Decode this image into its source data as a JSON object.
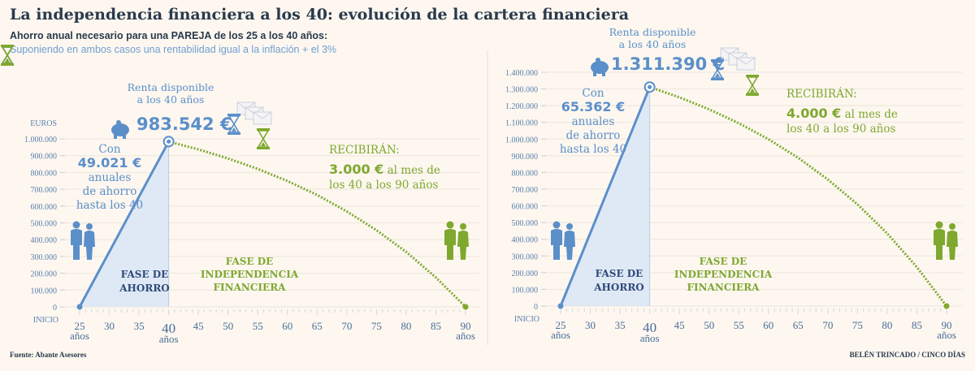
{
  "header": {
    "title": "La independencia financiera a los 40: evolución de la cartera financiera",
    "subtitle": "Ahorro anual necesario para una PAREJA de los 25 a los 40 años:",
    "note": "Suponiendo en ambos casos una rentabilidad igual a la inflación + el 3%"
  },
  "footer": {
    "source": "Fuente: Abante Asesores",
    "credit": "BELÉN TRINCADO / CINCO DÍAS"
  },
  "colors": {
    "blue": "#5b8fc9",
    "green": "#7fa82f",
    "fill": "#dce7f6"
  },
  "chart_data": [
    {
      "type": "line",
      "ylabel": "EUROS",
      "ylim": [
        0,
        1000000
      ],
      "ytick_step": 100000,
      "xlabel_origin": "INICIO",
      "xticks": [
        25,
        30,
        35,
        40,
        45,
        50,
        55,
        60,
        65,
        70,
        75,
        80,
        85,
        90
      ],
      "xtick_unit": "años",
      "x": [
        25,
        40,
        45,
        50,
        55,
        60,
        65,
        70,
        75,
        80,
        85,
        90
      ],
      "series": [
        {
          "name": "Fase de ahorro",
          "x": [
            25,
            40
          ],
          "values": [
            0,
            983542
          ]
        },
        {
          "name": "Fase de independencia financiera",
          "x": [
            40,
            45,
            50,
            55,
            60,
            65,
            70,
            75,
            80,
            85,
            90
          ],
          "values": [
            983542,
            937000,
            883000,
            821000,
            749000,
            666000,
            568000,
            456000,
            327000,
            175000,
            0
          ]
        }
      ],
      "annotations": {
        "renta_1": "Renta disponible",
        "renta_2": "a los 40 años",
        "renta_value": "983.542 €",
        "con": "Con",
        "ahorro_value": "49.021 €",
        "anuales": "anuales",
        "de_ahorro": "de ahorro",
        "hasta": "hasta los 40",
        "recibiran": "RECIBIRÁN:",
        "mes_value": "3.000 €",
        "mes_text": " al mes de",
        "periodo": "los 40 a los 90 años",
        "fase_ahorro_1": "FASE DE",
        "fase_ahorro_2": "AHORRO",
        "fase_ind_1": "FASE DE",
        "fase_ind_2": "INDEPENDENCIA",
        "fase_ind_3": "FINANCIERA"
      }
    },
    {
      "type": "line",
      "ylabel": "",
      "ylim": [
        0,
        1400000
      ],
      "ytick_step": 100000,
      "xlabel_origin": "INICIO",
      "xticks": [
        25,
        30,
        35,
        40,
        45,
        50,
        55,
        60,
        65,
        70,
        75,
        80,
        85,
        90
      ],
      "xtick_unit": "años",
      "series": [
        {
          "name": "Fase de ahorro",
          "x": [
            25,
            40
          ],
          "values": [
            0,
            1311390
          ]
        },
        {
          "name": "Fase de independencia financiera",
          "x": [
            40,
            45,
            50,
            55,
            60,
            65,
            70,
            75,
            80,
            85,
            90
          ],
          "values": [
            1311390,
            1250000,
            1178000,
            1095000,
            999000,
            888000,
            758000,
            609000,
            435000,
            233000,
            0
          ]
        }
      ],
      "annotations": {
        "renta_1": "Renta disponible",
        "renta_2": "a los 40 años",
        "renta_value": "1.311.390 €",
        "con": "Con",
        "ahorro_value": "65.362 €",
        "anuales": "anuales",
        "de_ahorro": "de ahorro",
        "hasta": "hasta los 40",
        "recibiran": "RECIBIRÁN:",
        "mes_value": "4.000 €",
        "mes_text": " al mes de",
        "periodo": "los 40 a los 90 años",
        "fase_ahorro_1": "FASE DE",
        "fase_ahorro_2": "AHORRO",
        "fase_ind_1": "FASE DE",
        "fase_ind_2": "INDEPENDENCIA",
        "fase_ind_3": "FINANCIERA"
      }
    }
  ]
}
